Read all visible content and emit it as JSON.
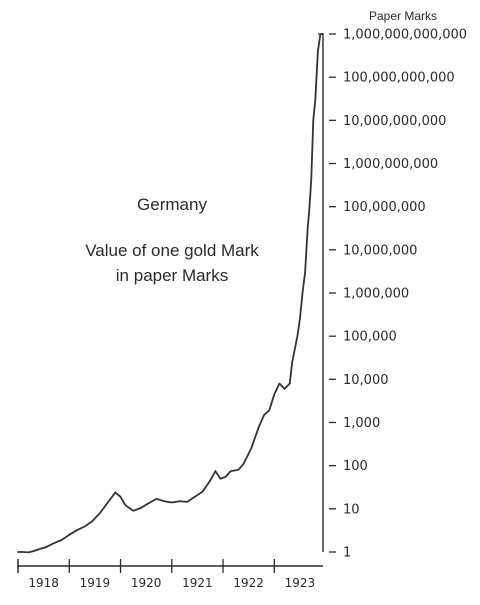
{
  "chart_data": {
    "type": "line",
    "title": "",
    "xlabel": "",
    "ylabel": "Paper Marks",
    "yscale": "log",
    "ylim": [
      1,
      1000000000000
    ],
    "xlim": [
      1918.0,
      1923.95
    ],
    "grid": false,
    "legend": "none",
    "annotations": [
      "Germany",
      "Value of one gold Mark",
      "in paper Marks"
    ],
    "x_tick_labels": [
      "1918",
      "1919",
      "1920",
      "1921",
      "1922",
      "1923"
    ],
    "x_tick_values": [
      1918.5,
      1919.5,
      1920.5,
      1921.5,
      1922.5,
      1923.5
    ],
    "y_tick_values": [
      1,
      10,
      100,
      1000,
      10000,
      100000,
      1000000,
      10000000,
      100000000,
      1000000000,
      10000000000,
      100000000000,
      1000000000000
    ],
    "y_tick_labels": [
      "1",
      "10",
      "100",
      "1,000",
      "10,000",
      "100,000",
      "1,000,000",
      "10,000,000",
      "100,000,000",
      "1,000,000,000",
      "10,000,000,000",
      "100,000,000,000",
      "1,000,000,000,000"
    ],
    "series": [
      {
        "x": [
          1918.0,
          1918.1,
          1918.2,
          1918.3,
          1918.4,
          1918.55,
          1918.7,
          1918.85,
          1919.0,
          1919.15,
          1919.3,
          1919.45,
          1919.6,
          1919.75,
          1919.9,
          1920.0,
          1920.1,
          1920.25,
          1920.4,
          1920.55,
          1920.7,
          1920.85,
          1921.0,
          1921.15,
          1921.3,
          1921.45,
          1921.6,
          1921.75,
          1921.85,
          1921.95,
          1922.05,
          1922.15,
          1922.3,
          1922.4,
          1922.55,
          1922.7,
          1922.8,
          1922.9,
          1923.0,
          1923.1,
          1923.2,
          1923.3,
          1923.35,
          1923.45,
          1923.5,
          1923.55,
          1923.6,
          1923.65,
          1923.68,
          1923.72,
          1923.76,
          1923.8,
          1923.85,
          1923.9,
          1923.95
        ],
        "y": [
          1.0,
          1.0,
          0.98,
          1.05,
          1.15,
          1.3,
          1.6,
          1.9,
          2.5,
          3.2,
          3.9,
          5.2,
          8.0,
          14.0,
          24.0,
          19.0,
          12.0,
          9.0,
          10.5,
          13.5,
          17.0,
          15.0,
          14.0,
          15.0,
          14.5,
          19.0,
          25.0,
          45.0,
          75.0,
          50.0,
          55.0,
          75.0,
          80.0,
          110.0,
          250.0,
          800.0,
          1500.0,
          1900.0,
          4500.0,
          8000.0,
          6000.0,
          8000.0,
          25000.0,
          100000.0,
          250000.0,
          1000000.0,
          3000000.0,
          30000000.0,
          80000000.0,
          400000000.0,
          10000000000.0,
          30000000000.0,
          400000000000.0,
          1000000000000.0,
          1000000000000.0
        ]
      }
    ]
  }
}
